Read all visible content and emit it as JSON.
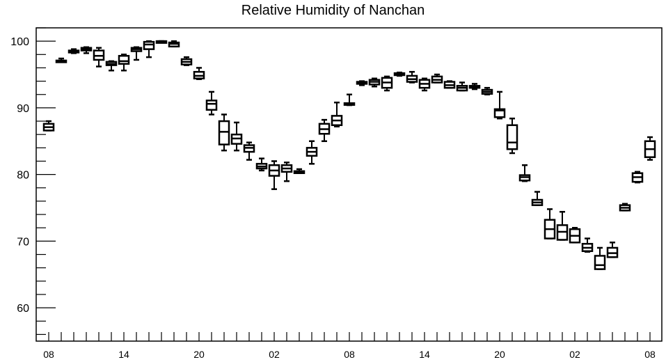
{
  "chart_data": {
    "type": "box",
    "title": "Relative Humidity of Nanchan",
    "xlabel": "",
    "ylabel": "",
    "ylim": [
      55,
      102
    ],
    "yticks": [
      60,
      70,
      80,
      90,
      100
    ],
    "xlim": [
      0,
      49
    ],
    "xticks": [
      {
        "pos": 0,
        "label": "08"
      },
      {
        "pos": 6,
        "label": "14"
      },
      {
        "pos": 12,
        "label": "20"
      },
      {
        "pos": 18,
        "label": "02"
      },
      {
        "pos": 24,
        "label": "08"
      },
      {
        "pos": 30,
        "label": "14"
      },
      {
        "pos": 36,
        "label": "20"
      },
      {
        "pos": 42,
        "label": "02"
      },
      {
        "pos": 48,
        "label": "08"
      }
    ],
    "boxes": [
      {
        "x": 0,
        "min": 86.6,
        "q1": 86.6,
        "median": 87.1,
        "q3": 87.6,
        "max": 88.0
      },
      {
        "x": 1,
        "min": 96.9,
        "q1": 96.9,
        "median": 97.0,
        "q3": 97.1,
        "max": 97.4
      },
      {
        "x": 2,
        "min": 98.2,
        "q1": 98.3,
        "median": 98.5,
        "q3": 98.6,
        "max": 98.8
      },
      {
        "x": 3,
        "min": 98.2,
        "q1": 98.6,
        "median": 98.8,
        "q3": 99.0,
        "max": 99.1
      },
      {
        "x": 4,
        "min": 96.2,
        "q1": 97.2,
        "median": 97.8,
        "q3": 98.6,
        "max": 99.0
      },
      {
        "x": 5,
        "min": 95.6,
        "q1": 96.4,
        "median": 96.6,
        "q3": 96.9,
        "max": 97.0
      },
      {
        "x": 6,
        "min": 95.6,
        "q1": 96.6,
        "median": 97.0,
        "q3": 97.8,
        "max": 98.0
      },
      {
        "x": 7,
        "min": 97.2,
        "q1": 98.5,
        "median": 98.8,
        "q3": 99.0,
        "max": 99.1
      },
      {
        "x": 8,
        "min": 97.6,
        "q1": 98.8,
        "median": 99.5,
        "q3": 99.9,
        "max": 100.0
      },
      {
        "x": 9,
        "min": 100.0,
        "q1": 100.0,
        "median": 100.0,
        "q3": 100.0,
        "max": 100.0
      },
      {
        "x": 10,
        "min": 99.2,
        "q1": 99.2,
        "median": 99.6,
        "q3": 99.8,
        "max": 100.0
      },
      {
        "x": 11,
        "min": 96.4,
        "q1": 96.5,
        "median": 96.9,
        "q3": 97.3,
        "max": 97.6
      },
      {
        "x": 12,
        "min": 94.3,
        "q1": 94.4,
        "median": 94.8,
        "q3": 95.4,
        "max": 96.0
      },
      {
        "x": 13,
        "min": 89.0,
        "q1": 89.7,
        "median": 90.6,
        "q3": 91.1,
        "max": 92.4
      },
      {
        "x": 14,
        "min": 83.6,
        "q1": 84.5,
        "median": 86.4,
        "q3": 88.0,
        "max": 89.0
      },
      {
        "x": 15,
        "min": 83.6,
        "q1": 84.6,
        "median": 85.4,
        "q3": 86.0,
        "max": 87.8
      },
      {
        "x": 16,
        "min": 82.2,
        "q1": 83.4,
        "median": 84.0,
        "q3": 84.4,
        "max": 84.8
      },
      {
        "x": 17,
        "min": 80.6,
        "q1": 80.9,
        "median": 81.2,
        "q3": 81.6,
        "max": 82.4
      },
      {
        "x": 18,
        "min": 77.8,
        "q1": 79.8,
        "median": 80.6,
        "q3": 81.4,
        "max": 82.0
      },
      {
        "x": 19,
        "min": 79.0,
        "q1": 80.4,
        "median": 80.9,
        "q3": 81.4,
        "max": 81.8
      },
      {
        "x": 20,
        "min": 80.2,
        "q1": 80.2,
        "median": 80.4,
        "q3": 80.5,
        "max": 80.8
      },
      {
        "x": 21,
        "min": 81.6,
        "q1": 82.8,
        "median": 83.4,
        "q3": 84.0,
        "max": 85.0
      },
      {
        "x": 22,
        "min": 85.0,
        "q1": 86.1,
        "median": 86.8,
        "q3": 87.6,
        "max": 88.2
      },
      {
        "x": 23,
        "min": 87.2,
        "q1": 87.4,
        "median": 88.1,
        "q3": 88.8,
        "max": 90.8
      },
      {
        "x": 24,
        "min": 90.4,
        "q1": 90.5,
        "median": 90.6,
        "q3": 90.7,
        "max": 92.0
      },
      {
        "x": 25,
        "min": 93.4,
        "q1": 93.6,
        "median": 93.8,
        "q3": 93.9,
        "max": 94.0
      },
      {
        "x": 26,
        "min": 93.2,
        "q1": 93.5,
        "median": 93.9,
        "q3": 94.2,
        "max": 94.4
      },
      {
        "x": 27,
        "min": 92.6,
        "q1": 93.0,
        "median": 93.8,
        "q3": 94.5,
        "max": 94.7
      },
      {
        "x": 28,
        "min": 94.8,
        "q1": 94.9,
        "median": 95.1,
        "q3": 95.2,
        "max": 95.3
      },
      {
        "x": 29,
        "min": 93.8,
        "q1": 93.9,
        "median": 94.3,
        "q3": 94.8,
        "max": 95.4
      },
      {
        "x": 30,
        "min": 92.6,
        "q1": 93.0,
        "median": 93.6,
        "q3": 94.2,
        "max": 94.4
      },
      {
        "x": 31,
        "min": 93.8,
        "q1": 93.8,
        "median": 94.2,
        "q3": 94.7,
        "max": 95.0
      },
      {
        "x": 32,
        "min": 93.0,
        "q1": 93.0,
        "median": 93.4,
        "q3": 93.9,
        "max": 94.0
      },
      {
        "x": 33,
        "min": 92.6,
        "q1": 92.6,
        "median": 93.0,
        "q3": 93.3,
        "max": 93.8
      },
      {
        "x": 34,
        "min": 92.8,
        "q1": 93.0,
        "median": 93.1,
        "q3": 93.3,
        "max": 93.6
      },
      {
        "x": 35,
        "min": 92.0,
        "q1": 92.1,
        "median": 92.4,
        "q3": 92.7,
        "max": 93.0
      },
      {
        "x": 36,
        "min": 88.4,
        "q1": 88.6,
        "median": 89.6,
        "q3": 89.8,
        "max": 92.4
      },
      {
        "x": 37,
        "min": 83.2,
        "q1": 83.8,
        "median": 84.8,
        "q3": 87.4,
        "max": 88.4
      },
      {
        "x": 38,
        "min": 79.0,
        "q1": 79.1,
        "median": 79.6,
        "q3": 79.9,
        "max": 81.4
      },
      {
        "x": 39,
        "min": 75.4,
        "q1": 75.4,
        "median": 75.8,
        "q3": 76.2,
        "max": 77.4
      },
      {
        "x": 40,
        "min": 70.4,
        "q1": 70.4,
        "median": 71.8,
        "q3": 73.2,
        "max": 74.8
      },
      {
        "x": 41,
        "min": 70.2,
        "q1": 70.2,
        "median": 71.4,
        "q3": 72.4,
        "max": 74.4
      },
      {
        "x": 42,
        "min": 69.8,
        "q1": 69.8,
        "median": 70.8,
        "q3": 71.8,
        "max": 72.0
      },
      {
        "x": 43,
        "min": 68.4,
        "q1": 68.5,
        "median": 69.0,
        "q3": 69.6,
        "max": 70.4
      },
      {
        "x": 44,
        "min": 65.8,
        "q1": 65.8,
        "median": 66.4,
        "q3": 67.8,
        "max": 69.0
      },
      {
        "x": 45,
        "min": 67.6,
        "q1": 67.6,
        "median": 68.2,
        "q3": 69.0,
        "max": 69.8
      },
      {
        "x": 46,
        "min": 74.6,
        "q1": 74.6,
        "median": 75.0,
        "q3": 75.4,
        "max": 75.6
      },
      {
        "x": 47,
        "min": 78.8,
        "q1": 78.9,
        "median": 79.6,
        "q3": 80.2,
        "max": 80.4
      },
      {
        "x": 48,
        "min": 82.2,
        "q1": 82.6,
        "median": 83.8,
        "q3": 85.0,
        "max": 85.6
      }
    ]
  }
}
